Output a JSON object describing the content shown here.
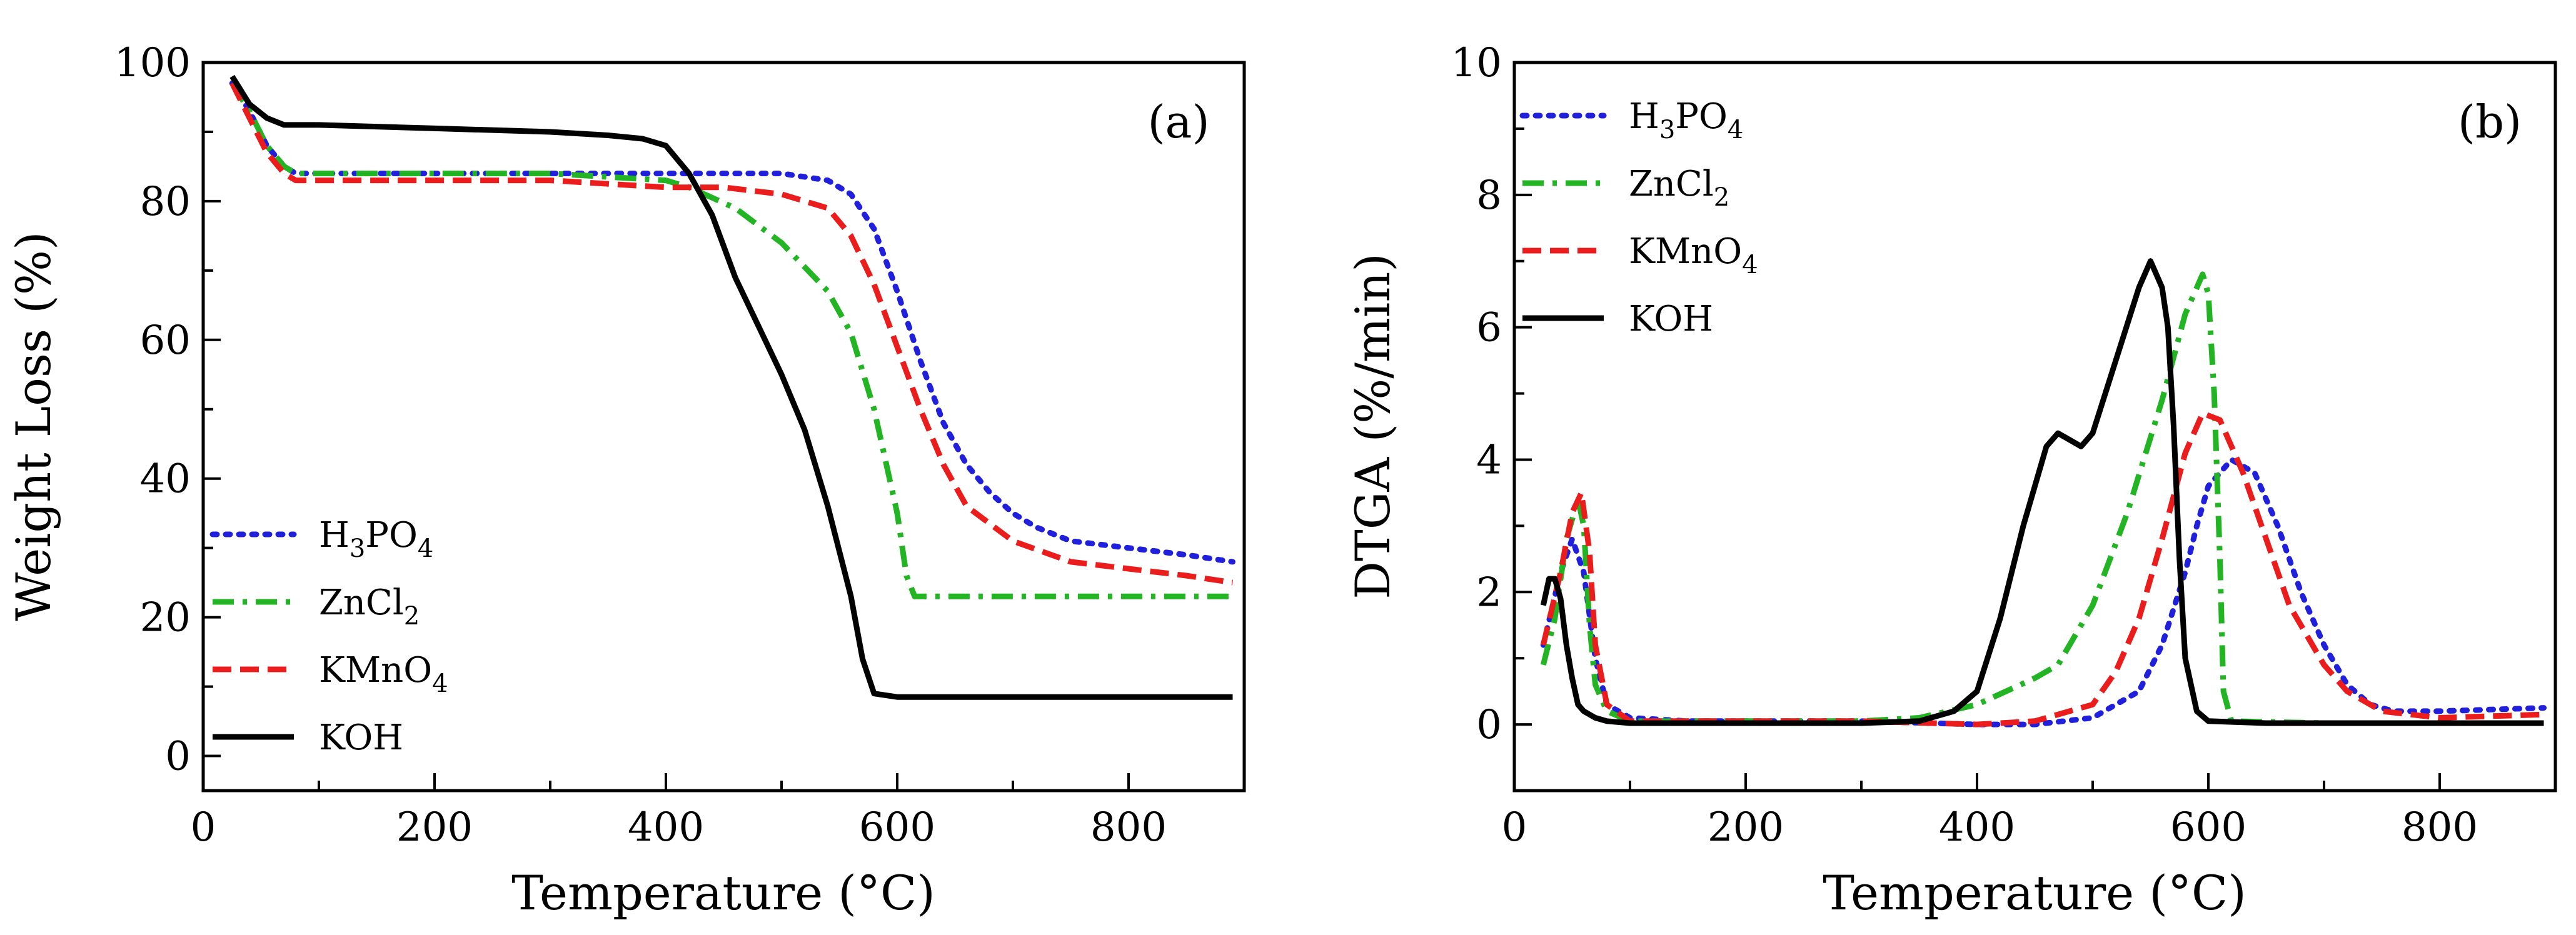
{
  "figure": {
    "panels": [
      "(a)",
      "(b)"
    ]
  },
  "chart_data": [
    {
      "type": "line",
      "panel_label": "(a)",
      "title": "",
      "xlabel": "Temperature (°C)",
      "ylabel": "Weight Loss (%)",
      "xlim": [
        0,
        900
      ],
      "ylim": [
        -5,
        100
      ],
      "xticks": [
        0,
        200,
        400,
        600,
        800
      ],
      "xticks_minor": [
        100,
        300,
        500,
        700
      ],
      "yticks": [
        0,
        20,
        40,
        60,
        80,
        100
      ],
      "yticks_minor": [
        10,
        30,
        50,
        70,
        90
      ],
      "legend_position": "bottom-left",
      "series": [
        {
          "name": "H3PO4",
          "legend": {
            "base": "H",
            "sub1": "3",
            "mid": "PO",
            "sub2": "4"
          },
          "color": "#1f1fdc",
          "style": "dotted",
          "x": [
            25,
            40,
            55,
            70,
            80,
            100,
            200,
            300,
            400,
            500,
            540,
            560,
            580,
            600,
            620,
            640,
            660,
            680,
            700,
            720,
            750,
            800,
            850,
            890
          ],
          "y": [
            97,
            93,
            88,
            85,
            84,
            84,
            84,
            84,
            84,
            84,
            83,
            81,
            76,
            67,
            57,
            48,
            42,
            38,
            35,
            33,
            31,
            30,
            29,
            28
          ]
        },
        {
          "name": "ZnCl2",
          "legend": {
            "base": "ZnCl",
            "sub1": "2",
            "mid": "",
            "sub2": ""
          },
          "color": "#22b422",
          "style": "dashdot",
          "x": [
            25,
            40,
            55,
            70,
            80,
            100,
            200,
            300,
            400,
            420,
            460,
            500,
            540,
            560,
            580,
            600,
            608,
            615,
            650,
            700,
            800,
            890
          ],
          "y": [
            97,
            93,
            88,
            85,
            84,
            84,
            84,
            84,
            83,
            82,
            79,
            74,
            67,
            61,
            50,
            35,
            26,
            23,
            23,
            23,
            23,
            23
          ],
          "ignore": []
        },
        {
          "name": "KMnO4",
          "legend": {
            "base": "KMnO",
            "sub1": "4",
            "mid": "",
            "sub2": ""
          },
          "color": "#ea1c1c",
          "style": "dashed",
          "x": [
            25,
            40,
            55,
            70,
            80,
            100,
            200,
            300,
            400,
            450,
            500,
            540,
            560,
            580,
            600,
            620,
            640,
            660,
            700,
            750,
            800,
            850,
            890
          ],
          "y": [
            97,
            92,
            87,
            84,
            83,
            83,
            83,
            83,
            82,
            82,
            81,
            79,
            75,
            68,
            59,
            50,
            42,
            36,
            31,
            28,
            27,
            26,
            25
          ]
        },
        {
          "name": "KOH",
          "legend": {
            "base": "KOH",
            "sub1": "",
            "mid": "",
            "sub2": ""
          },
          "color": "#000000",
          "style": "solid",
          "x": [
            25,
            40,
            55,
            70,
            100,
            200,
            300,
            350,
            380,
            400,
            420,
            440,
            460,
            480,
            500,
            520,
            540,
            560,
            570,
            580,
            600,
            700,
            800,
            890
          ],
          "y": [
            98,
            94,
            92,
            91,
            91,
            90.5,
            90,
            89.5,
            89,
            88,
            84,
            78,
            69,
            62,
            55,
            47,
            36,
            23,
            14,
            9,
            8.5,
            8.5,
            8.5,
            8.5
          ]
        }
      ]
    },
    {
      "type": "line",
      "panel_label": "(b)",
      "title": "",
      "xlabel": "Temperature (°C)",
      "ylabel": "DTGA (%/min)",
      "xlim": [
        0,
        900
      ],
      "ylim": [
        -1,
        10
      ],
      "xticks": [
        0,
        200,
        400,
        600,
        800
      ],
      "xticks_minor": [
        100,
        300,
        500,
        700
      ],
      "yticks": [
        0,
        2,
        4,
        6,
        8,
        10
      ],
      "yticks_minor": [
        -1,
        1,
        3,
        5,
        7,
        9
      ],
      "legend_position": "top-left",
      "series": [
        {
          "name": "H3PO4",
          "legend": {
            "base": "H",
            "sub1": "3",
            "mid": "PO",
            "sub2": "4"
          },
          "color": "#1f1fdc",
          "style": "dotted",
          "x": [
            25,
            40,
            50,
            60,
            70,
            80,
            100,
            150,
            200,
            300,
            400,
            450,
            500,
            540,
            560,
            580,
            590,
            600,
            620,
            640,
            660,
            680,
            700,
            720,
            740,
            760,
            800,
            890
          ],
          "y": [
            1.2,
            2.3,
            2.8,
            2.3,
            1.0,
            0.3,
            0.1,
            0.05,
            0.05,
            0.05,
            0.0,
            0.0,
            0.1,
            0.5,
            1.2,
            2.3,
            3.0,
            3.6,
            4.0,
            3.8,
            3.0,
            2.0,
            1.2,
            0.6,
            0.3,
            0.2,
            0.2,
            0.25
          ]
        },
        {
          "name": "ZnCl2",
          "legend": {
            "base": "ZnCl",
            "sub1": "2",
            "mid": "",
            "sub2": ""
          },
          "color": "#22b422",
          "style": "dashdot",
          "x": [
            25,
            35,
            45,
            55,
            60,
            65,
            70,
            80,
            100,
            200,
            300,
            350,
            400,
            450,
            470,
            500,
            530,
            560,
            580,
            595,
            600,
            605,
            610,
            613,
            620,
            700,
            800,
            890
          ],
          "y": [
            0.9,
            1.6,
            2.8,
            3.4,
            3.0,
            1.5,
            0.6,
            0.2,
            0.05,
            0.05,
            0.05,
            0.1,
            0.3,
            0.7,
            0.9,
            1.8,
            3.2,
            4.9,
            6.2,
            6.8,
            6.5,
            5.0,
            2.5,
            0.5,
            0.05,
            0.02,
            0.02,
            0.02
          ]
        },
        {
          "name": "KMnO4",
          "legend": {
            "base": "KMnO",
            "sub1": "4",
            "mid": "",
            "sub2": ""
          },
          "color": "#ea1c1c",
          "style": "dashed",
          "x": [
            25,
            40,
            50,
            58,
            65,
            70,
            80,
            100,
            200,
            300,
            400,
            450,
            500,
            520,
            540,
            560,
            580,
            595,
            610,
            630,
            650,
            670,
            700,
            720,
            750,
            800,
            890
          ],
          "y": [
            1.2,
            2.3,
            3.2,
            3.5,
            2.6,
            1.2,
            0.3,
            0.05,
            0.05,
            0.05,
            0.0,
            0.05,
            0.3,
            0.8,
            1.6,
            2.8,
            4.1,
            4.7,
            4.6,
            3.8,
            2.8,
            1.8,
            0.9,
            0.5,
            0.2,
            0.1,
            0.15
          ]
        },
        {
          "name": "KOH",
          "legend": {
            "base": "KOH",
            "sub1": "",
            "mid": "",
            "sub2": ""
          },
          "color": "#000000",
          "style": "solid",
          "x": [
            25,
            30,
            35,
            40,
            45,
            50,
            55,
            60,
            70,
            80,
            100,
            200,
            300,
            350,
            380,
            400,
            420,
            440,
            460,
            470,
            480,
            490,
            500,
            520,
            540,
            550,
            560,
            565,
            570,
            575,
            580,
            590,
            600,
            650,
            700,
            800,
            890
          ],
          "y": [
            1.8,
            2.2,
            2.2,
            1.9,
            1.2,
            0.7,
            0.3,
            0.2,
            0.1,
            0.05,
            0.02,
            0.02,
            0.02,
            0.05,
            0.2,
            0.5,
            1.6,
            3.0,
            4.2,
            4.4,
            4.3,
            4.2,
            4.4,
            5.5,
            6.6,
            7.0,
            6.6,
            6.0,
            4.5,
            2.5,
            1.0,
            0.2,
            0.05,
            0.02,
            0.02,
            0.02,
            0.02
          ]
        }
      ]
    }
  ]
}
